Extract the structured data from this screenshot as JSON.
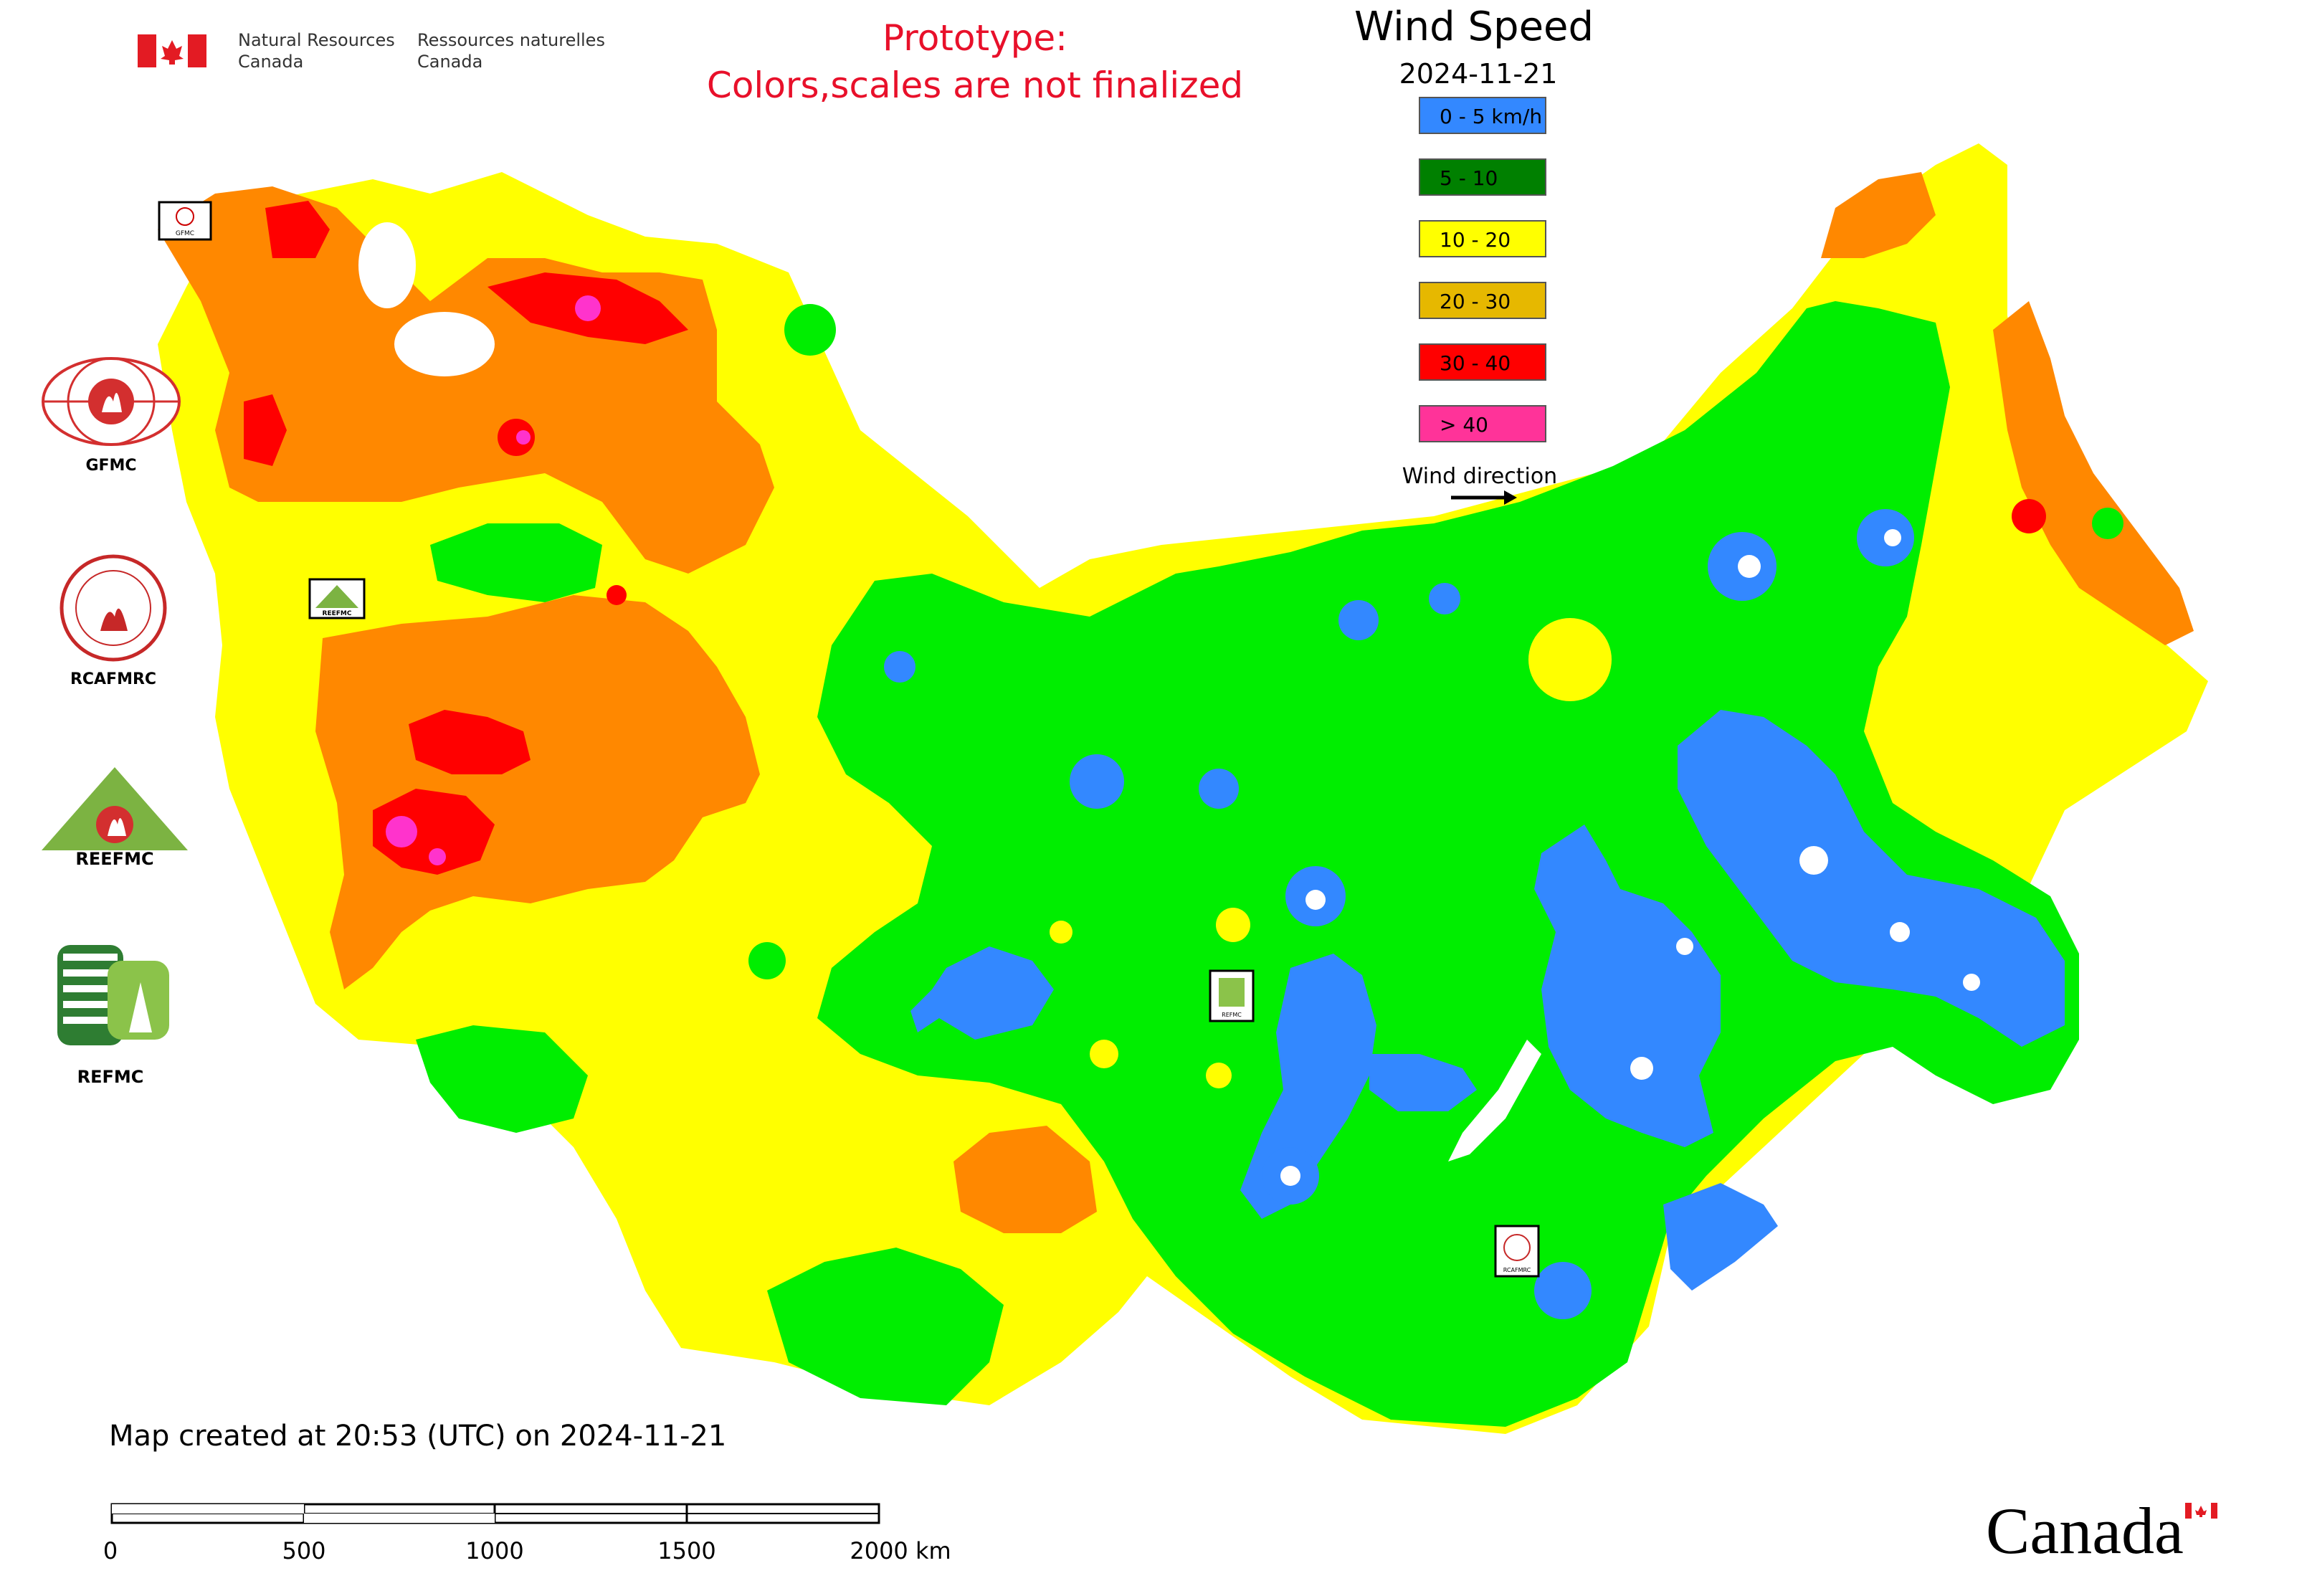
{
  "header": {
    "agency_en_line1": "Natural Resources",
    "agency_en_line2": "Canada",
    "agency_fr_line1": "Ressources naturelles",
    "agency_fr_line2": "Canada",
    "prototype_line1": "Prototype:",
    "prototype_line2": "Colors,scales are not finalized"
  },
  "legend": {
    "title": "Wind Speed",
    "date": "2024-11-21",
    "items": [
      {
        "label": "0 - 5 km/h",
        "color": "#3388ff"
      },
      {
        "label": "5 - 10",
        "color": "#008000"
      },
      {
        "label": "10 - 20",
        "color": "#ffff00"
      },
      {
        "label": "20 - 30",
        "color": "#e6b800"
      },
      {
        "label": "30 - 40",
        "color": "#ff0000"
      },
      {
        "label": "> 40",
        "color": "#ff3399"
      }
    ],
    "wind_direction_label": "Wind direction"
  },
  "logos": [
    {
      "name": "GFMC",
      "label": "GFMC"
    },
    {
      "name": "RCAFMRC",
      "label": "RCAFMRC"
    },
    {
      "name": "REEFMC",
      "label": "REEFMC"
    },
    {
      "name": "REFMC",
      "label": "REFMC"
    }
  ],
  "map_markers": {
    "gfmc": "GFMC",
    "reefmc": "REEFMC",
    "refmc": "REFMC",
    "rcafmrc": "RCAFMRC"
  },
  "footer": {
    "created_text": "Map created at 20:53 (UTC) on 2024-11-21",
    "scale_labels": [
      "0",
      "500",
      "1000",
      "1500",
      "2000 km"
    ],
    "canada_wordmark": "Canada"
  },
  "colors": {
    "blue": "#3388ff",
    "lime": "#00ee00",
    "yellow": "#ffff00",
    "orange": "#ff8800",
    "red": "#ff0000",
    "magenta": "#ff33cc",
    "prototype_red": "#e8102a"
  }
}
